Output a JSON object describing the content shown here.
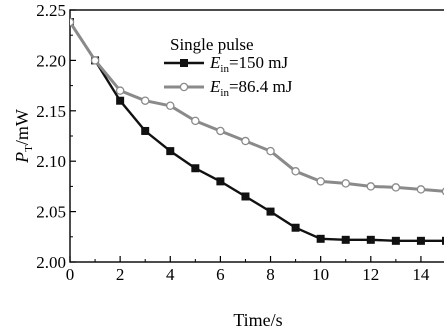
{
  "chart_data": {
    "type": "line",
    "title": "",
    "xlabel": "Time/s",
    "ylabel": "P_T/mW",
    "ylabel_main": "P",
    "ylabel_sub": "T",
    "ylabel_unit": "/mW",
    "xlim": [
      0,
      15
    ],
    "ylim": [
      2.0,
      2.25
    ],
    "xticks": [
      0,
      2,
      4,
      6,
      8,
      10,
      12,
      14
    ],
    "yticks": [
      2.0,
      2.05,
      2.1,
      2.15,
      2.2,
      2.25
    ],
    "xtick_labels": [
      "0",
      "2",
      "4",
      "6",
      "8",
      "10",
      "12",
      "14"
    ],
    "ytick_labels": [
      "2.00",
      "2.05",
      "2.10",
      "2.15",
      "2.20",
      "2.25"
    ],
    "grid": false,
    "legend_position": "top-center",
    "legend_title": "Single pulse",
    "x": [
      0,
      1,
      2,
      3,
      4,
      5,
      6,
      7,
      8,
      9,
      10,
      11,
      12,
      13,
      14,
      15
    ],
    "series": [
      {
        "name": "E_in=150 mJ",
        "label_main": "E",
        "label_sub": "in",
        "label_rest": "=150 mJ",
        "color": "#111111",
        "marker": "filled-square",
        "values": [
          2.238,
          2.2,
          2.16,
          2.13,
          2.11,
          2.093,
          2.08,
          2.065,
          2.05,
          2.034,
          2.023,
          2.022,
          2.022,
          2.021,
          2.021,
          2.021
        ]
      },
      {
        "name": "E_in=86.4 mJ",
        "label_main": "E",
        "label_sub": "in",
        "label_rest": "=86.4 mJ",
        "color": "#8a8a8a",
        "marker": "open-circle",
        "values": [
          2.238,
          2.2,
          2.17,
          2.16,
          2.155,
          2.14,
          2.13,
          2.12,
          2.11,
          2.09,
          2.08,
          2.078,
          2.075,
          2.074,
          2.072,
          2.07
        ]
      }
    ]
  }
}
